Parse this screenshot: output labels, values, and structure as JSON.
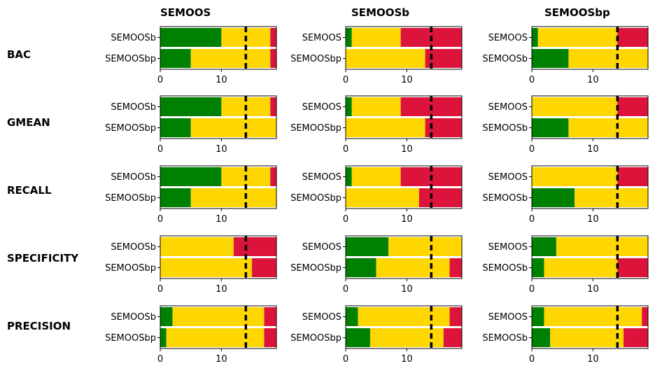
{
  "colors": {
    "win": "#008000",
    "tie": "#FFD700",
    "loss": "#DC143C",
    "threshold": "#000000"
  },
  "row_labels": [
    "BAC",
    "GMEAN",
    "RECALL",
    "SPECIFICITY",
    "PRECISION"
  ],
  "column_titles": [
    "SEMOOS",
    "SEMOOSb",
    "SEMOOSbp"
  ],
  "chart_data": {
    "type": "bar",
    "orientation": "horizontal",
    "stacked": true,
    "segments": [
      "win",
      "tie",
      "loss"
    ],
    "xlim": [
      0,
      19
    ],
    "xticks": [
      0,
      10
    ],
    "threshold_line": 14,
    "grid": false,
    "panels": [
      {
        "row": "BAC",
        "column": "SEMOOS",
        "bars": [
          {
            "label": "SEMOOSb",
            "win": 10,
            "tie": 8,
            "loss": 1
          },
          {
            "label": "SEMOOSbp",
            "win": 5,
            "tie": 13,
            "loss": 1
          }
        ]
      },
      {
        "row": "BAC",
        "column": "SEMOOSb",
        "bars": [
          {
            "label": "SEMOOS",
            "win": 1,
            "tie": 8,
            "loss": 10
          },
          {
            "label": "SEMOOSbp",
            "win": 0,
            "tie": 13,
            "loss": 6
          }
        ]
      },
      {
        "row": "BAC",
        "column": "SEMOOSbp",
        "bars": [
          {
            "label": "SEMOOS",
            "win": 1,
            "tie": 13,
            "loss": 5
          },
          {
            "label": "SEMOOSb",
            "win": 6,
            "tie": 13,
            "loss": 0
          }
        ]
      },
      {
        "row": "GMEAN",
        "column": "SEMOOS",
        "bars": [
          {
            "label": "SEMOOSb",
            "win": 10,
            "tie": 8,
            "loss": 1
          },
          {
            "label": "SEMOOSbp",
            "win": 5,
            "tie": 14,
            "loss": 0
          }
        ]
      },
      {
        "row": "GMEAN",
        "column": "SEMOOSb",
        "bars": [
          {
            "label": "SEMOOS",
            "win": 1,
            "tie": 8,
            "loss": 10
          },
          {
            "label": "SEMOOSbp",
            "win": 0,
            "tie": 13,
            "loss": 6
          }
        ]
      },
      {
        "row": "GMEAN",
        "column": "SEMOOSbp",
        "bars": [
          {
            "label": "SEMOOS",
            "win": 0,
            "tie": 14,
            "loss": 5
          },
          {
            "label": "SEMOOSb",
            "win": 6,
            "tie": 13,
            "loss": 0
          }
        ]
      },
      {
        "row": "RECALL",
        "column": "SEMOOS",
        "bars": [
          {
            "label": "SEMOOSb",
            "win": 10,
            "tie": 8,
            "loss": 1
          },
          {
            "label": "SEMOOSbp",
            "win": 5,
            "tie": 14,
            "loss": 0
          }
        ]
      },
      {
        "row": "RECALL",
        "column": "SEMOOSb",
        "bars": [
          {
            "label": "SEMOOS",
            "win": 1,
            "tie": 8,
            "loss": 10
          },
          {
            "label": "SEMOOSbp",
            "win": 0,
            "tie": 12,
            "loss": 7
          }
        ]
      },
      {
        "row": "RECALL",
        "column": "SEMOOSbp",
        "bars": [
          {
            "label": "SEMOOS",
            "win": 0,
            "tie": 14,
            "loss": 5
          },
          {
            "label": "SEMOOSb",
            "win": 7,
            "tie": 12,
            "loss": 0
          }
        ]
      },
      {
        "row": "SPECIFICITY",
        "column": "SEMOOS",
        "bars": [
          {
            "label": "SEMOOSb",
            "win": 0,
            "tie": 12,
            "loss": 7
          },
          {
            "label": "SEMOOSbp",
            "win": 0,
            "tie": 15,
            "loss": 4
          }
        ]
      },
      {
        "row": "SPECIFICITY",
        "column": "SEMOOSb",
        "bars": [
          {
            "label": "SEMOOS",
            "win": 7,
            "tie": 12,
            "loss": 0
          },
          {
            "label": "SEMOOSbp",
            "win": 5,
            "tie": 12,
            "loss": 2
          }
        ]
      },
      {
        "row": "SPECIFICITY",
        "column": "SEMOOSbp",
        "bars": [
          {
            "label": "SEMOOS",
            "win": 4,
            "tie": 15,
            "loss": 0
          },
          {
            "label": "SEMOOSb",
            "win": 2,
            "tie": 12,
            "loss": 5
          }
        ]
      },
      {
        "row": "PRECISION",
        "column": "SEMOOS",
        "bars": [
          {
            "label": "SEMOOSb",
            "win": 2,
            "tie": 15,
            "loss": 2
          },
          {
            "label": "SEMOOSbp",
            "win": 1,
            "tie": 16,
            "loss": 2
          }
        ]
      },
      {
        "row": "PRECISION",
        "column": "SEMOOSb",
        "bars": [
          {
            "label": "SEMOOS",
            "win": 2,
            "tie": 15,
            "loss": 2
          },
          {
            "label": "SEMOOSbp",
            "win": 4,
            "tie": 12,
            "loss": 3
          }
        ]
      },
      {
        "row": "PRECISION",
        "column": "SEMOOSbp",
        "bars": [
          {
            "label": "SEMOOS",
            "win": 2,
            "tie": 16,
            "loss": 1
          },
          {
            "label": "SEMOOSb",
            "win": 3,
            "tie": 12,
            "loss": 4
          }
        ]
      }
    ]
  }
}
